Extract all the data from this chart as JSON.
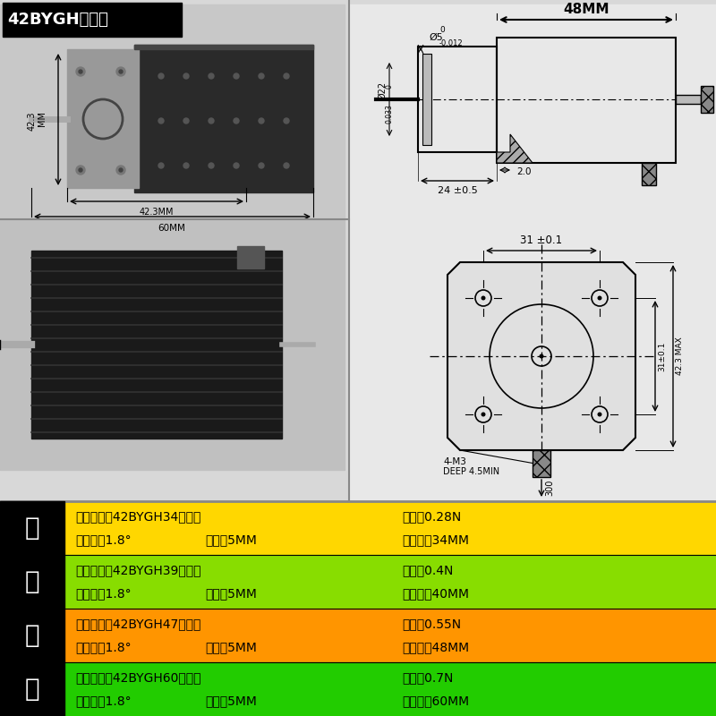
{
  "title_label": "42BYGH双出轴",
  "bg_color": "#d8d8d8",
  "upper_bg": "#d0d0d0",
  "title_bg": "#000000",
  "title_fg": "#ffffff",
  "table_side_bg": "#000000",
  "table_side_fg": "#ffffff",
  "table_side_chars": [
    "四",
    "种",
    "可",
    "选"
  ],
  "rows": [
    {
      "bg": "#FFD700",
      "l1_left": "电机型号：42BYGH34双出轴",
      "l1_right": "力矩：0.28N",
      "l2_a": "步距角：1.8°",
      "l2_b": "轴径：5MM",
      "l2_c": "机身长：34MM"
    },
    {
      "bg": "#88DD00",
      "l1_left": "电机型号：42BYGH39双出轴",
      "l1_right": "力矩：0.4N",
      "l2_a": "步距角：1.8°",
      "l2_b": "轴径：5MM",
      "l2_c": "机身长：40MM"
    },
    {
      "bg": "#FF9500",
      "l1_left": "电机型号：42BYGH47双出轴",
      "l1_right": "力矩：0.55N",
      "l2_a": "步距角：1.8°",
      "l2_b": "轴径：5MM",
      "l2_c": "机身长：48MM"
    },
    {
      "bg": "#22CC00",
      "l1_left": "电机型号：42BYGH60双出轴",
      "l1_right": "力矩：0.7N",
      "l2_a": "步距角：1.8°",
      "l2_b": "轴径：5MM",
      "l2_c": "机身长：60MM"
    }
  ],
  "diag_bg": "#e8e8e8"
}
